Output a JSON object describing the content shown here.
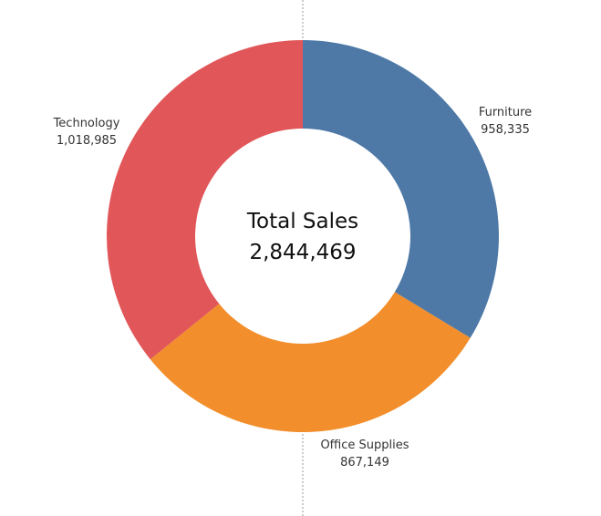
{
  "chart_data": {
    "type": "pie",
    "variant": "donut",
    "categories": [
      "Furniture",
      "Office Supplies",
      "Technology"
    ],
    "values": [
      958335,
      867149,
      1018985
    ],
    "value_labels": [
      "958,335",
      "867,149",
      "1,018,985"
    ],
    "colors": [
      "#4e79a7",
      "#f28e2b",
      "#e15759"
    ],
    "start_angle_deg": 0,
    "direction": "clockwise",
    "center": {
      "title": "Total Sales",
      "value": "2,844,469"
    },
    "legend": "none"
  },
  "divider_color": "#9a9a9a"
}
